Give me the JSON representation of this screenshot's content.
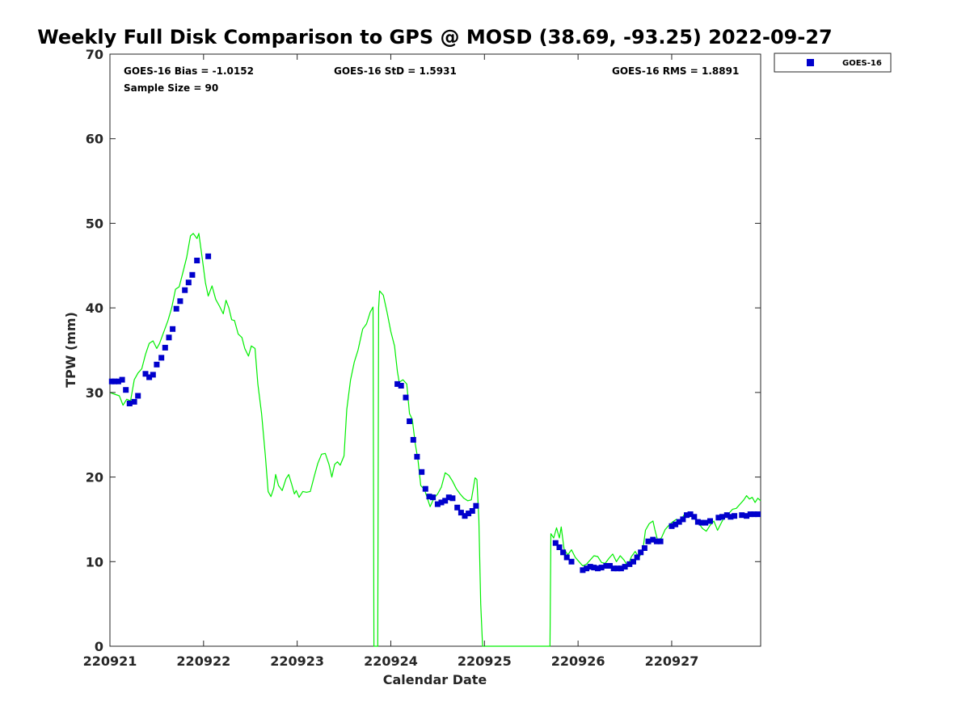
{
  "chart_data": {
    "type": "scatter",
    "title": "Weekly Full Disk Comparison to GPS @ MOSD (38.69, -93.25) 2022-09-27",
    "xlabel": "Calendar Date",
    "ylabel": "TPW (mm)",
    "xlim": [
      0,
      6.95
    ],
    "ylim": [
      0,
      70
    ],
    "xticks": [
      0,
      1,
      2,
      3,
      4,
      5,
      6
    ],
    "xtick_labels": [
      "220921",
      "220922",
      "220923",
      "220924",
      "220925",
      "220926",
      "220927"
    ],
    "yticks": [
      0,
      10,
      20,
      30,
      40,
      50,
      60,
      70
    ],
    "ytick_labels": [
      "0",
      "10",
      "20",
      "30",
      "40",
      "50",
      "60",
      "70"
    ],
    "grid": false,
    "legend": {
      "position": "top-right",
      "entries": [
        "GOES-16"
      ]
    },
    "stats": {
      "bias": "GOES-16 Bias = -1.0152",
      "std": "GOES-16 StD = 1.5931",
      "rms": "GOES-16 RMS = 1.8891",
      "sample": "Sample Size = 90"
    },
    "series": [
      {
        "name": "GOES-16",
        "kind": "scatter",
        "color": "#0000cc",
        "marker": "square",
        "points": [
          [
            0.02,
            31.3
          ],
          [
            0.05,
            31.3
          ],
          [
            0.09,
            31.3
          ],
          [
            0.13,
            31.5
          ],
          [
            0.17,
            30.3
          ],
          [
            0.21,
            28.7
          ],
          [
            0.26,
            28.9
          ],
          [
            0.3,
            29.6
          ],
          [
            0.38,
            32.2
          ],
          [
            0.42,
            31.8
          ],
          [
            0.46,
            32.1
          ],
          [
            0.5,
            33.3
          ],
          [
            0.55,
            34.1
          ],
          [
            0.59,
            35.3
          ],
          [
            0.63,
            36.5
          ],
          [
            0.67,
            37.5
          ],
          [
            0.71,
            39.9
          ],
          [
            0.75,
            40.8
          ],
          [
            0.8,
            42.1
          ],
          [
            0.84,
            43.0
          ],
          [
            0.88,
            43.9
          ],
          [
            0.93,
            45.6
          ],
          [
            1.05,
            46.1
          ],
          [
            3.07,
            31.0
          ],
          [
            3.11,
            30.8
          ],
          [
            3.16,
            29.4
          ],
          [
            3.2,
            26.6
          ],
          [
            3.24,
            24.4
          ],
          [
            3.28,
            22.4
          ],
          [
            3.33,
            20.6
          ],
          [
            3.37,
            18.6
          ],
          [
            3.41,
            17.7
          ],
          [
            3.45,
            17.6
          ],
          [
            3.5,
            16.8
          ],
          [
            3.54,
            17.0
          ],
          [
            3.58,
            17.2
          ],
          [
            3.62,
            17.6
          ],
          [
            3.66,
            17.5
          ],
          [
            3.71,
            16.4
          ],
          [
            3.75,
            15.8
          ],
          [
            3.79,
            15.4
          ],
          [
            3.83,
            15.7
          ],
          [
            3.87,
            16.0
          ],
          [
            3.91,
            16.6
          ],
          [
            4.76,
            12.2
          ],
          [
            4.8,
            11.7
          ],
          [
            4.84,
            11.1
          ],
          [
            4.88,
            10.5
          ],
          [
            4.93,
            10.0
          ],
          [
            5.05,
            9.0
          ],
          [
            5.09,
            9.2
          ],
          [
            5.13,
            9.4
          ],
          [
            5.17,
            9.3
          ],
          [
            5.21,
            9.2
          ],
          [
            5.25,
            9.3
          ],
          [
            5.3,
            9.5
          ],
          [
            5.34,
            9.5
          ],
          [
            5.38,
            9.2
          ],
          [
            5.42,
            9.2
          ],
          [
            5.46,
            9.2
          ],
          [
            5.5,
            9.4
          ],
          [
            5.55,
            9.7
          ],
          [
            5.59,
            10.0
          ],
          [
            5.63,
            10.5
          ],
          [
            5.67,
            11.1
          ],
          [
            5.71,
            11.6
          ],
          [
            5.75,
            12.4
          ],
          [
            5.8,
            12.6
          ],
          [
            5.84,
            12.4
          ],
          [
            5.88,
            12.4
          ],
          [
            6.0,
            14.2
          ],
          [
            6.04,
            14.4
          ],
          [
            6.08,
            14.7
          ],
          [
            6.12,
            15.0
          ],
          [
            6.16,
            15.5
          ],
          [
            6.2,
            15.6
          ],
          [
            6.24,
            15.3
          ],
          [
            6.28,
            14.7
          ],
          [
            6.32,
            14.6
          ],
          [
            6.36,
            14.6
          ],
          [
            6.41,
            14.8
          ],
          [
            6.5,
            15.2
          ],
          [
            6.54,
            15.3
          ],
          [
            6.59,
            15.5
          ],
          [
            6.63,
            15.3
          ],
          [
            6.67,
            15.4
          ],
          [
            6.75,
            15.5
          ],
          [
            6.8,
            15.4
          ],
          [
            6.84,
            15.6
          ],
          [
            6.88,
            15.6
          ],
          [
            6.92,
            15.6
          ]
        ]
      },
      {
        "name": "",
        "kind": "line",
        "color": "#00ee00",
        "points": [
          [
            0.0,
            30.0
          ],
          [
            0.05,
            29.8
          ],
          [
            0.1,
            29.6
          ],
          [
            0.14,
            28.5
          ],
          [
            0.18,
            29.2
          ],
          [
            0.22,
            29.0
          ],
          [
            0.26,
            31.5
          ],
          [
            0.3,
            32.3
          ],
          [
            0.34,
            32.8
          ],
          [
            0.38,
            34.5
          ],
          [
            0.42,
            35.8
          ],
          [
            0.46,
            36.1
          ],
          [
            0.5,
            35.2
          ],
          [
            0.53,
            35.8
          ],
          [
            0.57,
            37.0
          ],
          [
            0.62,
            38.5
          ],
          [
            0.66,
            40.0
          ],
          [
            0.7,
            42.2
          ],
          [
            0.74,
            42.5
          ],
          [
            0.78,
            44.2
          ],
          [
            0.82,
            46.0
          ],
          [
            0.86,
            48.5
          ],
          [
            0.89,
            48.8
          ],
          [
            0.93,
            48.2
          ],
          [
            0.95,
            48.8
          ],
          [
            0.99,
            45.5
          ],
          [
            1.02,
            43.0
          ],
          [
            1.05,
            41.4
          ],
          [
            1.09,
            42.6
          ],
          [
            1.13,
            41.0
          ],
          [
            1.17,
            40.2
          ],
          [
            1.21,
            39.3
          ],
          [
            1.24,
            40.9
          ],
          [
            1.27,
            40.0
          ],
          [
            1.3,
            38.6
          ],
          [
            1.33,
            38.5
          ],
          [
            1.37,
            36.9
          ],
          [
            1.41,
            36.5
          ],
          [
            1.44,
            35.2
          ],
          [
            1.48,
            34.3
          ],
          [
            1.51,
            35.5
          ],
          [
            1.55,
            35.2
          ],
          [
            1.58,
            31.0
          ],
          [
            1.62,
            27.5
          ],
          [
            1.66,
            22.5
          ],
          [
            1.69,
            18.3
          ],
          [
            1.72,
            17.7
          ],
          [
            1.75,
            18.7
          ],
          [
            1.77,
            20.3
          ],
          [
            1.8,
            19.0
          ],
          [
            1.84,
            18.4
          ],
          [
            1.88,
            19.8
          ],
          [
            1.91,
            20.3
          ],
          [
            1.94,
            19.2
          ],
          [
            1.97,
            18.0
          ],
          [
            1.99,
            18.4
          ],
          [
            2.02,
            17.6
          ],
          [
            2.06,
            18.3
          ],
          [
            2.1,
            18.2
          ],
          [
            2.14,
            18.3
          ],
          [
            2.18,
            20.0
          ],
          [
            2.22,
            21.6
          ],
          [
            2.26,
            22.7
          ],
          [
            2.3,
            22.8
          ],
          [
            2.34,
            21.5
          ],
          [
            2.37,
            20.0
          ],
          [
            2.4,
            21.5
          ],
          [
            2.43,
            21.8
          ],
          [
            2.46,
            21.4
          ],
          [
            2.5,
            22.5
          ],
          [
            2.53,
            28.0
          ],
          [
            2.57,
            31.5
          ],
          [
            2.61,
            33.6
          ],
          [
            2.65,
            35.0
          ],
          [
            2.7,
            37.5
          ],
          [
            2.74,
            38.1
          ],
          [
            2.78,
            39.5
          ],
          [
            2.81,
            40.1
          ],
          [
            2.82,
            0.0
          ],
          [
            2.86,
            0.0
          ],
          [
            2.87,
            40.0
          ],
          [
            2.88,
            42.0
          ],
          [
            2.92,
            41.5
          ],
          [
            2.96,
            39.5
          ],
          [
            3.0,
            37.2
          ],
          [
            3.04,
            35.5
          ],
          [
            3.07,
            32.5
          ],
          [
            3.09,
            31.2
          ],
          [
            3.13,
            31.5
          ],
          [
            3.17,
            31.0
          ],
          [
            3.2,
            27.5
          ],
          [
            3.23,
            26.8
          ],
          [
            3.26,
            24.0
          ],
          [
            3.29,
            22.0
          ],
          [
            3.32,
            19.0
          ],
          [
            3.36,
            18.5
          ],
          [
            3.39,
            17.5
          ],
          [
            3.42,
            16.5
          ],
          [
            3.46,
            17.5
          ],
          [
            3.5,
            18.0
          ],
          [
            3.54,
            18.8
          ],
          [
            3.58,
            20.5
          ],
          [
            3.62,
            20.2
          ],
          [
            3.66,
            19.5
          ],
          [
            3.7,
            18.6
          ],
          [
            3.74,
            18.0
          ],
          [
            3.78,
            17.5
          ],
          [
            3.82,
            17.2
          ],
          [
            3.86,
            17.3
          ],
          [
            3.9,
            19.9
          ],
          [
            3.92,
            19.7
          ],
          [
            3.94,
            15.0
          ],
          [
            3.96,
            5.0
          ],
          [
            3.98,
            0.0
          ],
          [
            4.7,
            0.0
          ],
          [
            4.71,
            13.3
          ],
          [
            4.74,
            12.8
          ],
          [
            4.77,
            14.0
          ],
          [
            4.8,
            12.8
          ],
          [
            4.82,
            14.1
          ],
          [
            4.85,
            11.5
          ],
          [
            4.89,
            10.8
          ],
          [
            4.93,
            11.4
          ],
          [
            4.97,
            10.5
          ],
          [
            5.01,
            10.0
          ],
          [
            5.05,
            9.5
          ],
          [
            5.09,
            9.7
          ],
          [
            5.13,
            10.2
          ],
          [
            5.17,
            10.7
          ],
          [
            5.21,
            10.6
          ],
          [
            5.25,
            9.9
          ],
          [
            5.29,
            9.8
          ],
          [
            5.33,
            10.4
          ],
          [
            5.37,
            10.9
          ],
          [
            5.41,
            10.0
          ],
          [
            5.45,
            10.7
          ],
          [
            5.49,
            10.2
          ],
          [
            5.53,
            9.5
          ],
          [
            5.57,
            10.6
          ],
          [
            5.61,
            11.2
          ],
          [
            5.65,
            10.5
          ],
          [
            5.69,
            11.2
          ],
          [
            5.72,
            13.7
          ],
          [
            5.76,
            14.5
          ],
          [
            5.8,
            14.8
          ],
          [
            5.82,
            13.8
          ],
          [
            5.85,
            12.5
          ],
          [
            5.89,
            12.8
          ],
          [
            5.93,
            13.8
          ],
          [
            5.97,
            14.3
          ],
          [
            6.01,
            14.7
          ],
          [
            6.05,
            15.0
          ],
          [
            6.09,
            14.7
          ],
          [
            6.13,
            15.5
          ],
          [
            6.17,
            15.7
          ],
          [
            6.21,
            15.7
          ],
          [
            6.25,
            15.0
          ],
          [
            6.29,
            14.5
          ],
          [
            6.33,
            13.9
          ],
          [
            6.37,
            13.6
          ],
          [
            6.41,
            14.3
          ],
          [
            6.45,
            14.8
          ],
          [
            6.49,
            13.7
          ],
          [
            6.53,
            14.6
          ],
          [
            6.57,
            15.4
          ],
          [
            6.61,
            15.7
          ],
          [
            6.65,
            16.2
          ],
          [
            6.69,
            16.3
          ],
          [
            6.73,
            16.8
          ],
          [
            6.77,
            17.3
          ],
          [
            6.8,
            17.8
          ],
          [
            6.83,
            17.4
          ],
          [
            6.86,
            17.6
          ],
          [
            6.89,
            17.0
          ],
          [
            6.92,
            17.5
          ],
          [
            6.95,
            17.2
          ]
        ]
      }
    ]
  }
}
